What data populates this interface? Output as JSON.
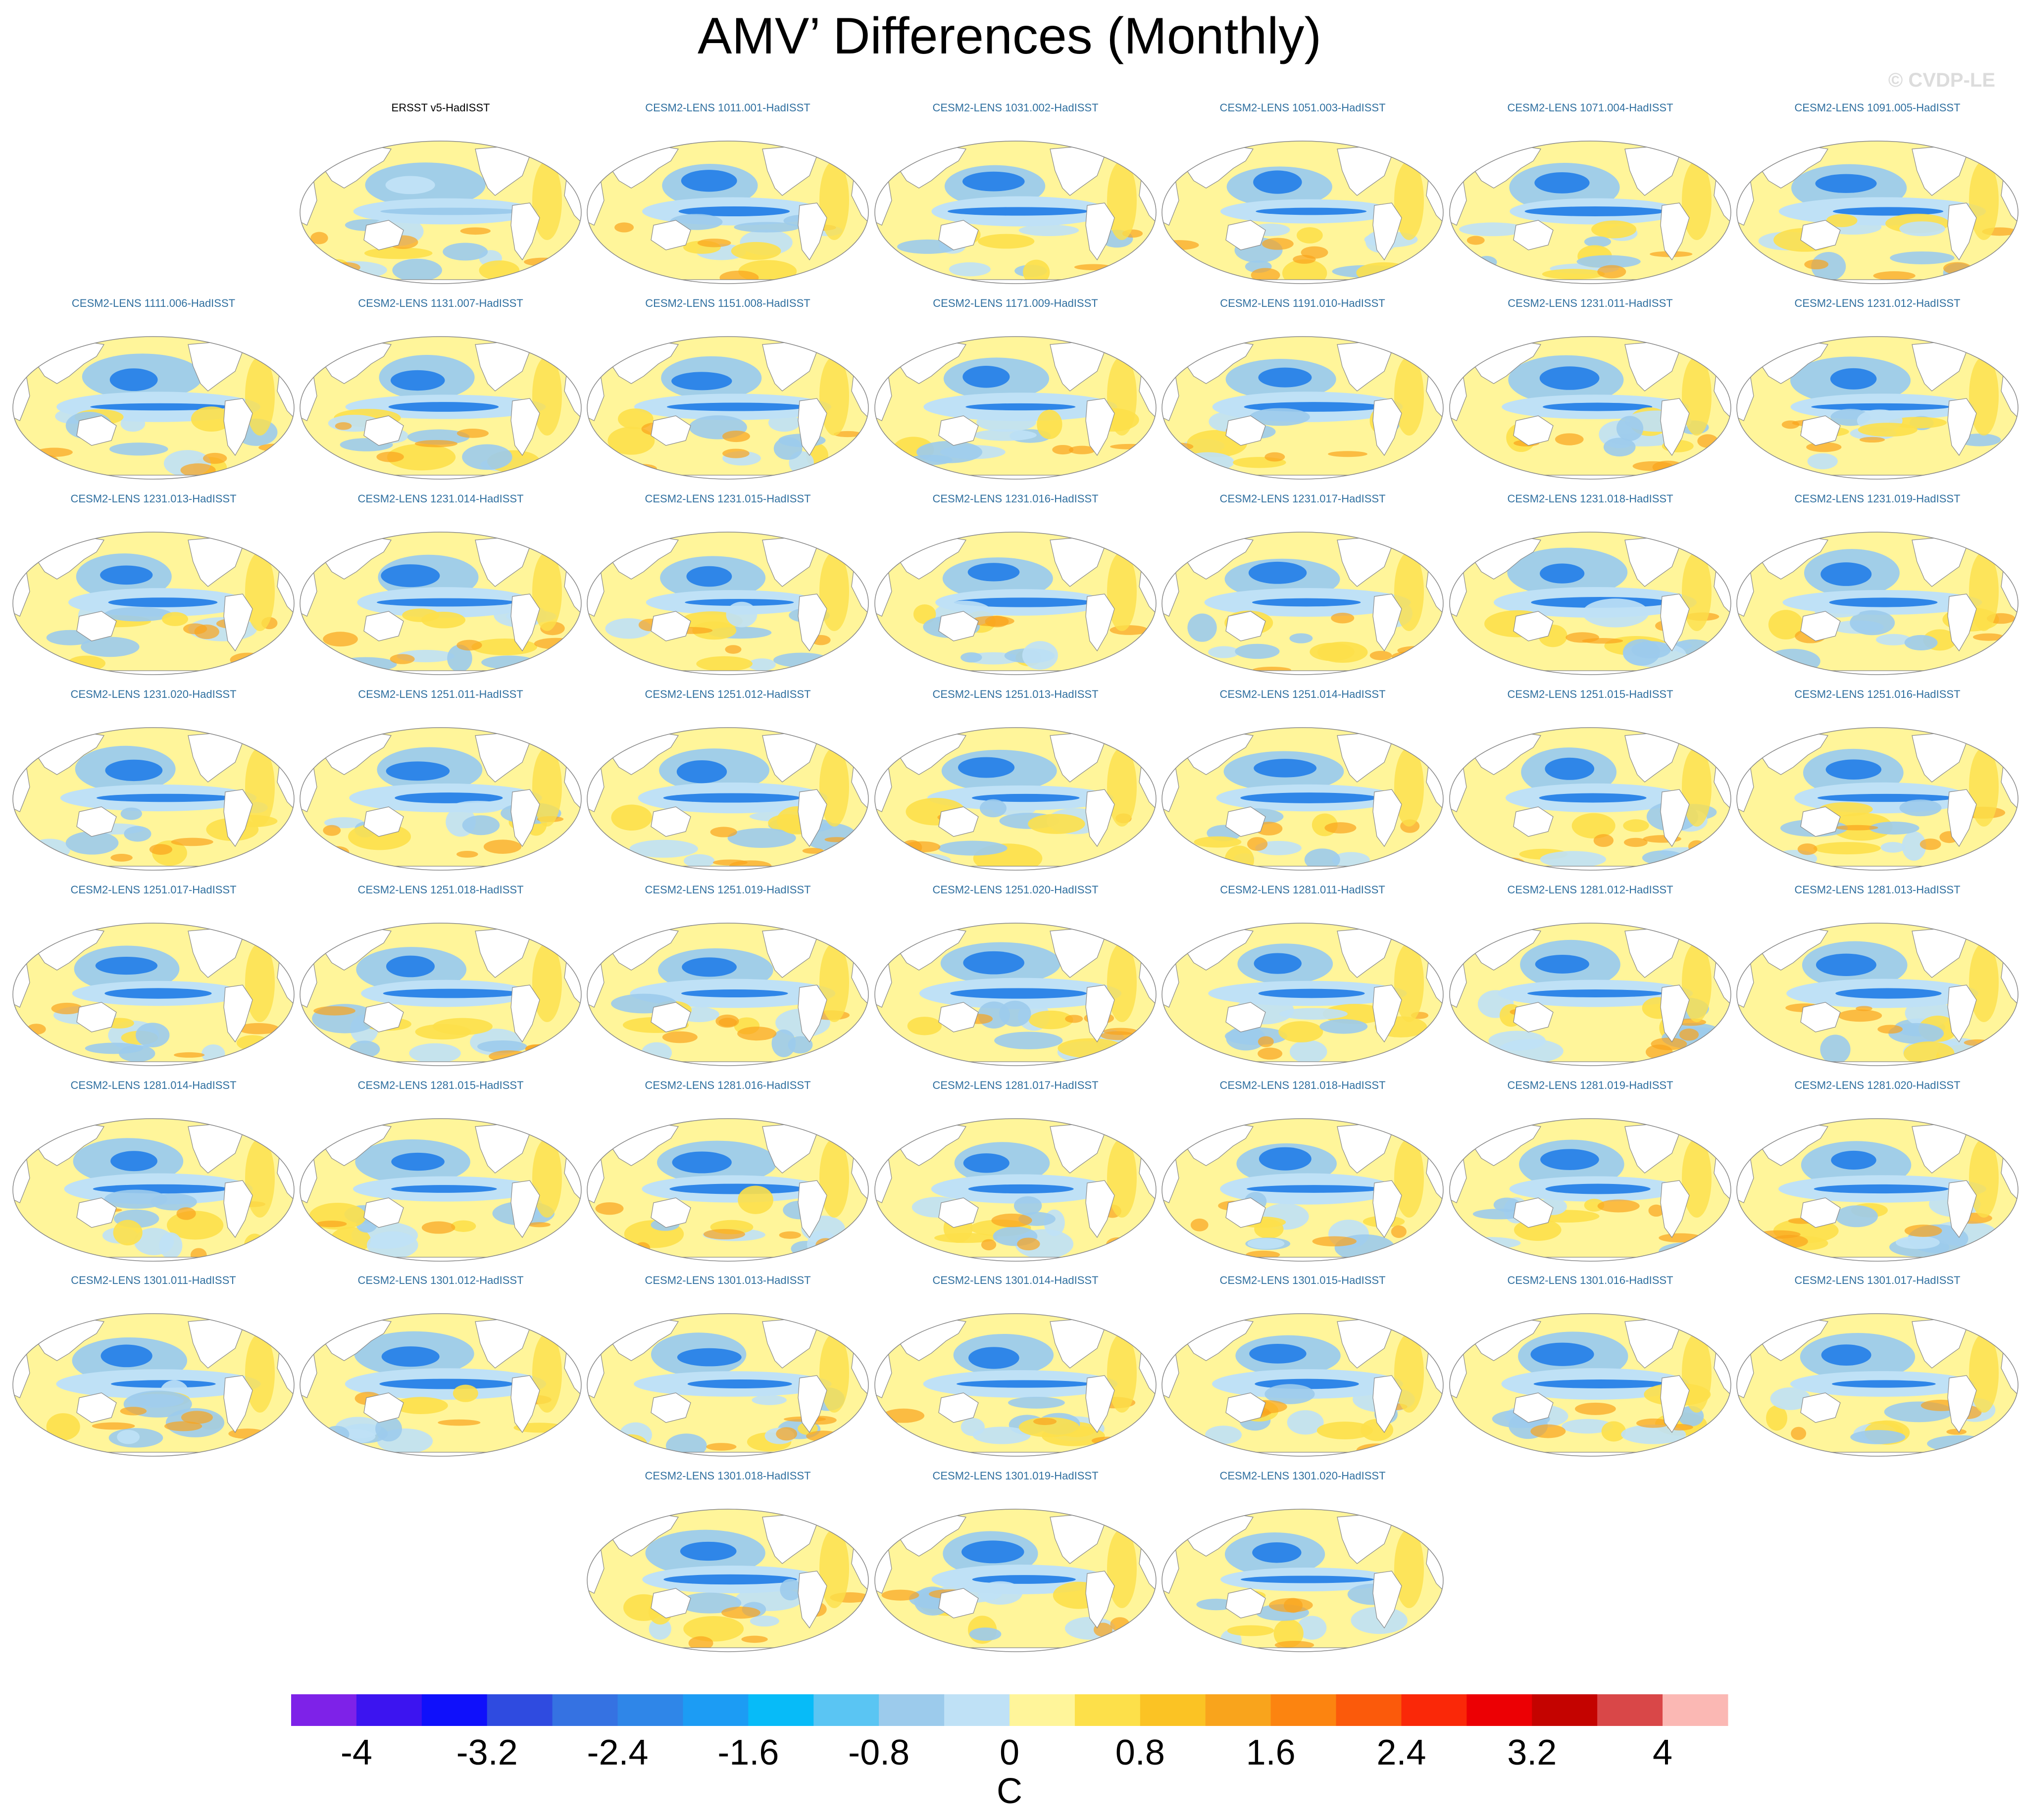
{
  "title": "AMV’ Differences (Monthly)",
  "watermark": "© CVDP-LE",
  "colors": {
    "land": "#ffffff",
    "coast": "#888888",
    "pos_light": "#fff59a",
    "pos_mid": "#fde04a",
    "pos_strong": "#f9a41c",
    "neg_light": "#bfe1f6",
    "neg_mid": "#9ccbec",
    "neg_strong": "#2f86e8",
    "neg_darker": "#1d5ee6"
  },
  "panels": [
    {
      "label": "ERSST v5-HadISST",
      "type": "obs"
    },
    {
      "label": "CESM2-LENS 1011.001-HadISST"
    },
    {
      "label": "CESM2-LENS 1031.002-HadISST"
    },
    {
      "label": "CESM2-LENS 1051.003-HadISST"
    },
    {
      "label": "CESM2-LENS 1071.004-HadISST"
    },
    {
      "label": "CESM2-LENS 1091.005-HadISST"
    },
    {
      "label": "CESM2-LENS 1111.006-HadISST"
    },
    {
      "label": "CESM2-LENS 1131.007-HadISST"
    },
    {
      "label": "CESM2-LENS 1151.008-HadISST"
    },
    {
      "label": "CESM2-LENS 1171.009-HadISST"
    },
    {
      "label": "CESM2-LENS 1191.010-HadISST"
    },
    {
      "label": "CESM2-LENS 1231.011-HadISST"
    },
    {
      "label": "CESM2-LENS 1231.012-HadISST"
    },
    {
      "label": "CESM2-LENS 1231.013-HadISST"
    },
    {
      "label": "CESM2-LENS 1231.014-HadISST"
    },
    {
      "label": "CESM2-LENS 1231.015-HadISST"
    },
    {
      "label": "CESM2-LENS 1231.016-HadISST"
    },
    {
      "label": "CESM2-LENS 1231.017-HadISST"
    },
    {
      "label": "CESM2-LENS 1231.018-HadISST"
    },
    {
      "label": "CESM2-LENS 1231.019-HadISST"
    },
    {
      "label": "CESM2-LENS 1231.020-HadISST"
    },
    {
      "label": "CESM2-LENS 1251.011-HadISST"
    },
    {
      "label": "CESM2-LENS 1251.012-HadISST"
    },
    {
      "label": "CESM2-LENS 1251.013-HadISST"
    },
    {
      "label": "CESM2-LENS 1251.014-HadISST"
    },
    {
      "label": "CESM2-LENS 1251.015-HadISST"
    },
    {
      "label": "CESM2-LENS 1251.016-HadISST"
    },
    {
      "label": "CESM2-LENS 1251.017-HadISST"
    },
    {
      "label": "CESM2-LENS 1251.018-HadISST"
    },
    {
      "label": "CESM2-LENS 1251.019-HadISST"
    },
    {
      "label": "CESM2-LENS 1251.020-HadISST"
    },
    {
      "label": "CESM2-LENS 1281.011-HadISST"
    },
    {
      "label": "CESM2-LENS 1281.012-HadISST"
    },
    {
      "label": "CESM2-LENS 1281.013-HadISST"
    },
    {
      "label": "CESM2-LENS 1281.014-HadISST"
    },
    {
      "label": "CESM2-LENS 1281.015-HadISST"
    },
    {
      "label": "CESM2-LENS 1281.016-HadISST"
    },
    {
      "label": "CESM2-LENS 1281.017-HadISST"
    },
    {
      "label": "CESM2-LENS 1281.018-HadISST"
    },
    {
      "label": "CESM2-LENS 1281.019-HadISST"
    },
    {
      "label": "CESM2-LENS 1281.020-HadISST"
    },
    {
      "label": "CESM2-LENS 1301.011-HadISST"
    },
    {
      "label": "CESM2-LENS 1301.012-HadISST"
    },
    {
      "label": "CESM2-LENS 1301.013-HadISST"
    },
    {
      "label": "CESM2-LENS 1301.014-HadISST"
    },
    {
      "label": "CESM2-LENS 1301.015-HadISST"
    },
    {
      "label": "CESM2-LENS 1301.016-HadISST"
    },
    {
      "label": "CESM2-LENS 1301.017-HadISST"
    },
    {
      "label": "CESM2-LENS 1301.018-HadISST"
    },
    {
      "label": "CESM2-LENS 1301.019-HadISST"
    },
    {
      "label": "CESM2-LENS 1301.020-HadISST"
    }
  ],
  "chart_data": {
    "type": "heatmap",
    "title": "AMV’ Differences (Monthly)",
    "projection": "Robinson (global, Pacific-centered)",
    "colorbar": {
      "units": "C",
      "min": -4.4,
      "max": 4.4,
      "interval": 0.4,
      "tick_labels": [
        "-4",
        "-3.2",
        "-2.4",
        "-1.6",
        "-0.8",
        "0",
        "0.8",
        "1.6",
        "2.4",
        "3.2",
        "4"
      ],
      "tick_values": [
        -4,
        -3.2,
        -2.4,
        -1.6,
        -0.8,
        0,
        0.8,
        1.6,
        2.4,
        3.2,
        4
      ],
      "colors": [
        "#7e22e8",
        "#3c14f0",
        "#0f10fb",
        "#2f4be0",
        "#3572e2",
        "#2f86e8",
        "#1c9cf4",
        "#07bbf8",
        "#5ac5f3",
        "#9ccbec",
        "#bfe1f6",
        "#fff59a",
        "#fde04a",
        "#fbc324",
        "#f9a41c",
        "#fc8410",
        "#fb5a0b",
        "#fa2808",
        "#ec0004",
        "#c40300",
        "#d94748",
        "#fbb8b4"
      ]
    }
  }
}
